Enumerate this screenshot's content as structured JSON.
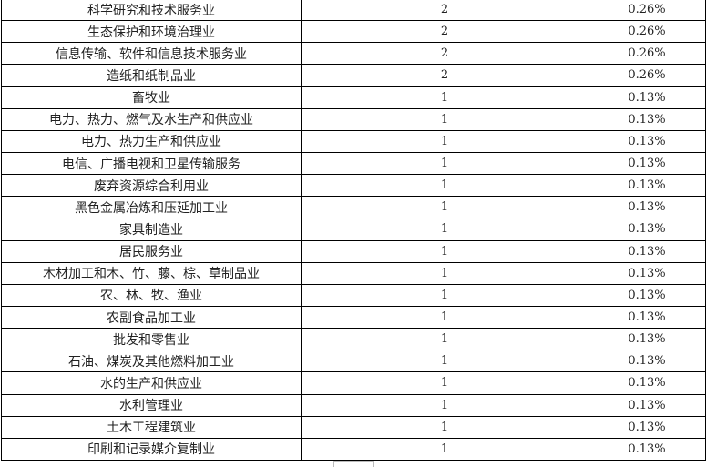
{
  "table": {
    "rows": [
      {
        "industry": "科学研究和技术服务业",
        "count": "2",
        "percent": "0.26%"
      },
      {
        "industry": "生态保护和环境治理业",
        "count": "2",
        "percent": "0.26%"
      },
      {
        "industry": "信息传输、软件和信息技术服务业",
        "count": "2",
        "percent": "0.26%"
      },
      {
        "industry": "造纸和纸制品业",
        "count": "2",
        "percent": "0.26%"
      },
      {
        "industry": "畜牧业",
        "count": "1",
        "percent": "0.13%"
      },
      {
        "industry": "电力、热力、燃气及水生产和供应业",
        "count": "1",
        "percent": "0.13%"
      },
      {
        "industry": "电力、热力生产和供应业",
        "count": "1",
        "percent": "0.13%"
      },
      {
        "industry": "电信、广播电视和卫星传输服务",
        "count": "1",
        "percent": "0.13%"
      },
      {
        "industry": "废弃资源综合利用业",
        "count": "1",
        "percent": "0.13%"
      },
      {
        "industry": "黑色金属冶炼和压延加工业",
        "count": "1",
        "percent": "0.13%"
      },
      {
        "industry": "家具制造业",
        "count": "1",
        "percent": "0.13%"
      },
      {
        "industry": "居民服务业",
        "count": "1",
        "percent": "0.13%"
      },
      {
        "industry": "木材加工和木、竹、藤、棕、草制品业",
        "count": "1",
        "percent": "0.13%"
      },
      {
        "industry": "农、林、牧、渔业",
        "count": "1",
        "percent": "0.13%"
      },
      {
        "industry": "农副食品加工业",
        "count": "1",
        "percent": "0.13%"
      },
      {
        "industry": "批发和零售业",
        "count": "1",
        "percent": "0.13%"
      },
      {
        "industry": "石油、煤炭及其他燃料加工业",
        "count": "1",
        "percent": "0.13%"
      },
      {
        "industry": "水的生产和供应业",
        "count": "1",
        "percent": "0.13%"
      },
      {
        "industry": "水利管理业",
        "count": "1",
        "percent": "0.13%"
      },
      {
        "industry": "土木工程建筑业",
        "count": "1",
        "percent": "0.13%"
      },
      {
        "industry": "印刷和记录媒介复制业",
        "count": "1",
        "percent": "0.13%"
      }
    ]
  }
}
